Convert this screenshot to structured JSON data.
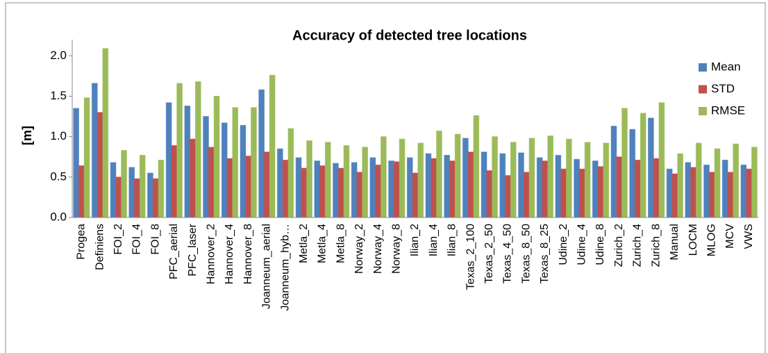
{
  "chart_data": {
    "type": "bar",
    "title": "Accuracy of detected tree locations",
    "y_label": "[m]",
    "categories": [
      "Progea",
      "Definiens",
      "FOI_2",
      "FOI_4",
      "FOI_8",
      "PFC_aerial",
      "PFC_laser",
      "Hannover_2",
      "Hannover_4",
      "Hannover_8",
      "Joanneum_aerial",
      "Joanneum_hyb…",
      "Metla_2",
      "Metla_4",
      "Metla_8",
      "Norway_2",
      "Norway_4",
      "Norway_8",
      "Ilian_2",
      "Ilian_4",
      "Ilian_8",
      "Texas_2_100",
      "Texas_2_50",
      "Texas_4_50",
      "Texas_8_50",
      "Texas_8_25",
      "Udine_2",
      "Udine_4",
      "Udine_8",
      "Zurich_2",
      "Zurich_4",
      "Zurich_8",
      "Manual",
      "LOCM",
      "MLOG",
      "MCV",
      "VWS"
    ],
    "series": [
      {
        "name": "Mean",
        "color": "#4f81bd",
        "values": [
          1.35,
          1.66,
          0.68,
          0.62,
          0.55,
          1.42,
          1.38,
          1.25,
          1.17,
          1.14,
          1.58,
          0.85,
          0.74,
          0.7,
          0.67,
          0.68,
          0.74,
          0.7,
          0.74,
          0.79,
          0.77,
          0.98,
          0.81,
          0.79,
          0.8,
          0.74,
          0.77,
          0.72,
          0.7,
          1.13,
          1.09,
          1.23,
          0.6,
          0.68,
          0.65,
          0.71,
          0.65
        ]
      },
      {
        "name": "STD",
        "color": "#c0504d",
        "values": [
          0.64,
          1.3,
          0.5,
          0.48,
          0.48,
          0.89,
          0.97,
          0.87,
          0.73,
          0.76,
          0.81,
          0.71,
          0.61,
          0.64,
          0.61,
          0.56,
          0.65,
          0.69,
          0.55,
          0.73,
          0.7,
          0.81,
          0.58,
          0.52,
          0.56,
          0.7,
          0.6,
          0.6,
          0.63,
          0.75,
          0.71,
          0.73,
          0.54,
          0.62,
          0.56,
          0.56,
          0.6
        ]
      },
      {
        "name": "RMSE",
        "color": "#9bbb59",
        "values": [
          1.48,
          2.09,
          0.83,
          0.77,
          0.71,
          1.66,
          1.68,
          1.5,
          1.36,
          1.36,
          1.76,
          1.1,
          0.95,
          0.93,
          0.89,
          0.87,
          1.0,
          0.97,
          0.92,
          1.07,
          1.03,
          1.26,
          1.0,
          0.93,
          0.98,
          1.01,
          0.97,
          0.93,
          0.92,
          1.35,
          1.29,
          1.42,
          0.79,
          0.92,
          0.85,
          0.91,
          0.87
        ]
      }
    ],
    "ylim": [
      0,
      2.2
    ],
    "yticks": [
      {
        "value": 0,
        "label": "0.0"
      },
      0.5,
      {
        "value": 1,
        "label": "1.0"
      },
      1.5,
      {
        "value": 2,
        "label": "2.0"
      }
    ],
    "legend": "right",
    "grid": false
  }
}
